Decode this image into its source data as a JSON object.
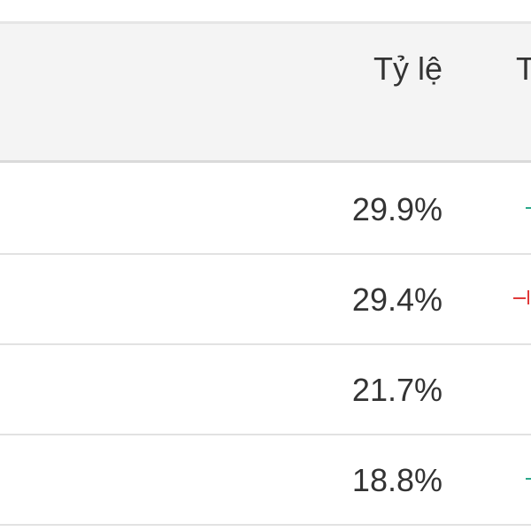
{
  "header": {
    "rate_label": "Tỷ lệ",
    "next_label": "T"
  },
  "rows": [
    {
      "rate": "29.9%",
      "trend": "up"
    },
    {
      "rate": "29.4%",
      "trend": "down"
    },
    {
      "rate": "21.7%",
      "trend": "none"
    },
    {
      "rate": "18.8%",
      "trend": "up"
    }
  ],
  "colors": {
    "up": "#2aa88a",
    "down": "#e03a3a",
    "header_bg": "#f4f4f4",
    "divider": "#e2e2e2"
  }
}
